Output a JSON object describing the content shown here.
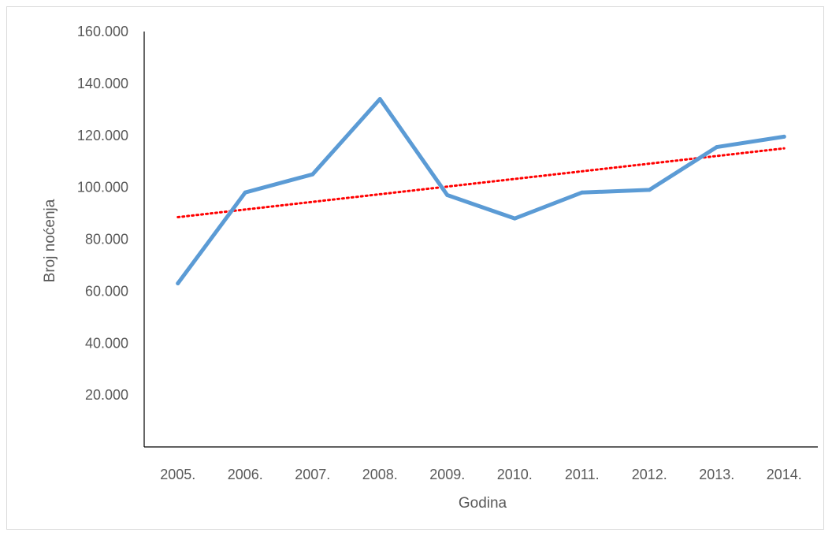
{
  "chart_data": {
    "type": "line",
    "xlabel": "Godina",
    "ylabel": "Broj noćenja",
    "categories": [
      "2005.",
      "2006.",
      "2007.",
      "2008.",
      "2009.",
      "2010.",
      "2011.",
      "2012.",
      "2013.",
      "2014."
    ],
    "series": [
      {
        "values": [
          63000,
          98000,
          105000,
          134000,
          97000,
          88000,
          98000,
          99000,
          115500,
          119500
        ],
        "color": "#5b9bd5",
        "style": "solid"
      }
    ],
    "trendline": {
      "type": "linear",
      "start": 88500,
      "end": 115000,
      "color": "#ff0000",
      "style": "dotted"
    },
    "ylim": [
      0,
      160000
    ],
    "yticks": [
      20000,
      40000,
      60000,
      80000,
      100000,
      120000,
      140000,
      160000
    ],
    "ytick_labels": [
      "20.000",
      "40.000",
      "60.000",
      "80.000",
      "100.000",
      "120.000",
      "140.000",
      "160.000"
    ],
    "grid": false,
    "legend": "none"
  }
}
